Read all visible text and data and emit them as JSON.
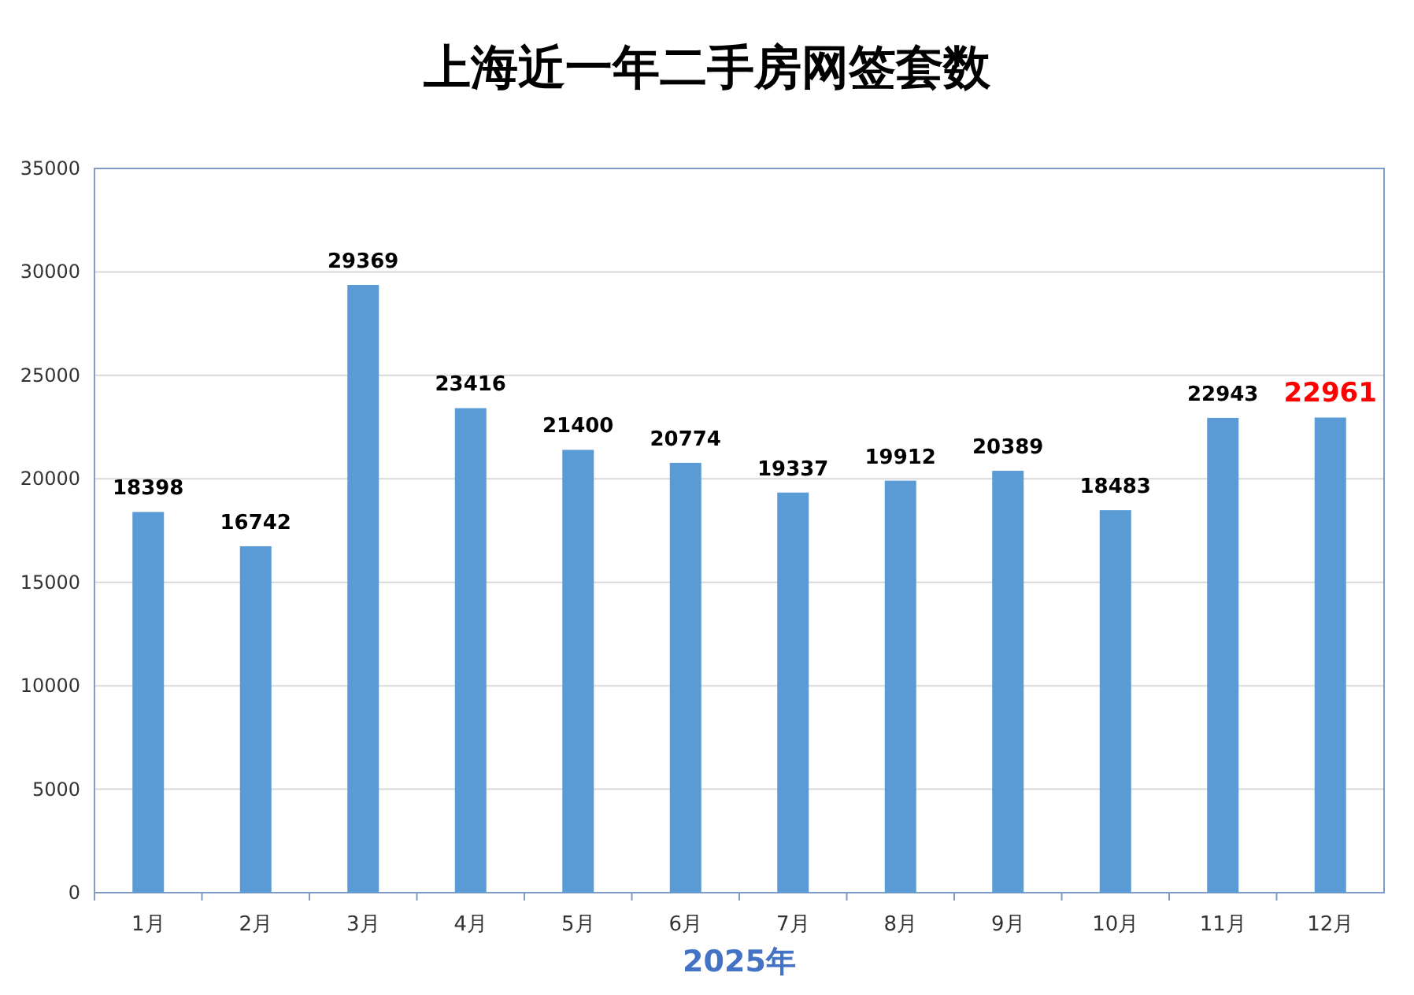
{
  "chart_data": {
    "type": "bar",
    "title": "上海近一年二手房网签套数",
    "xlabel": "2025年",
    "categories": [
      "1月",
      "2月",
      "3月",
      "4月",
      "5月",
      "6月",
      "7月",
      "8月",
      "9月",
      "10月",
      "11月",
      "12月"
    ],
    "values": [
      18398,
      16742,
      29369,
      23416,
      21400,
      20774,
      19337,
      19912,
      20389,
      18483,
      22943,
      22961
    ],
    "color": "#5b9bd5",
    "ylim": [
      0,
      35000
    ],
    "yticks": [
      0,
      5000,
      10000,
      15000,
      20000,
      25000,
      30000,
      35000
    ],
    "grid": "y",
    "data_labels": true
  }
}
